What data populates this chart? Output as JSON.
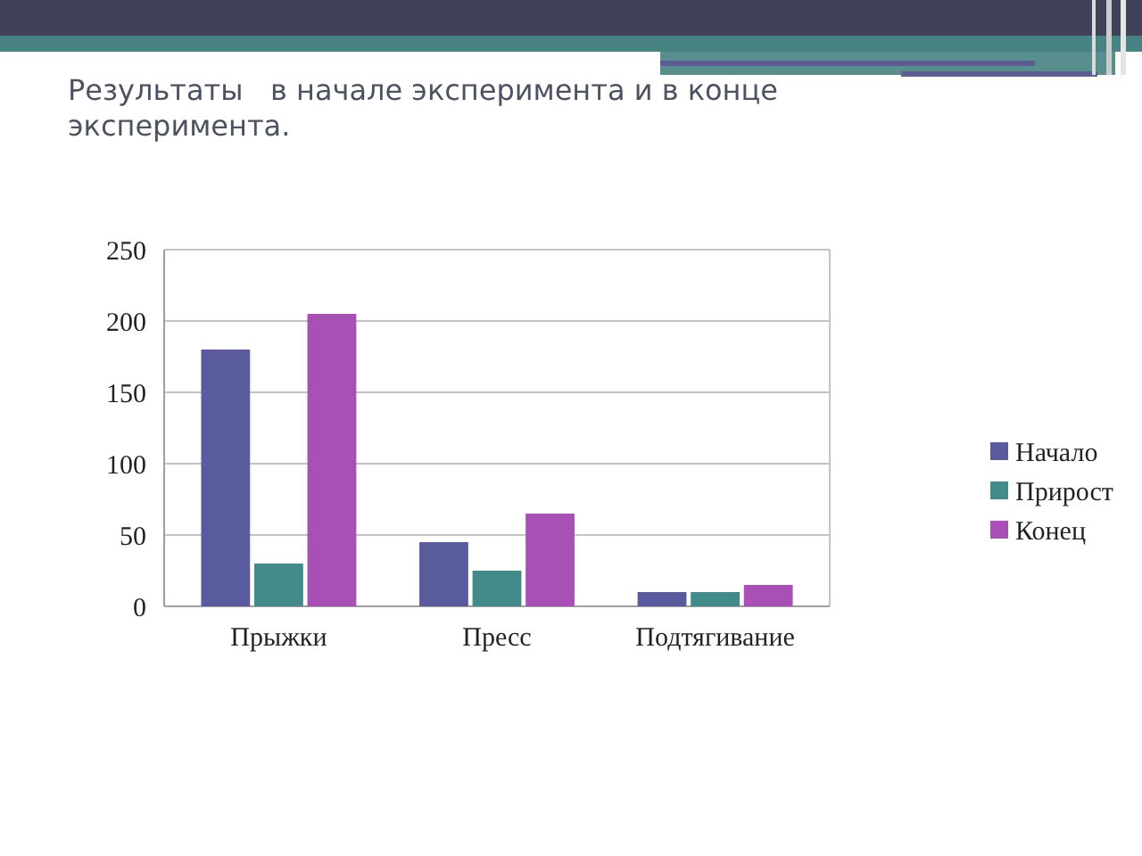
{
  "chart_data": {
    "type": "bar",
    "title": "Результаты   в начале эксперимента и в конце эксперимента.",
    "categories": [
      "Прыжки",
      "Пресс",
      "Подтягивание"
    ],
    "series": [
      {
        "name": "Начало",
        "color": "#5a5a9e",
        "values": [
          180,
          45,
          10
        ]
      },
      {
        "name": "Прирост",
        "color": "#438a8a",
        "values": [
          30,
          25,
          10
        ]
      },
      {
        "name": "Конец",
        "color": "#a850b6",
        "values": [
          205,
          65,
          15
        ]
      }
    ],
    "ylim": [
      0,
      250
    ],
    "yticks": [
      0,
      50,
      100,
      150,
      200,
      250
    ],
    "grid": true,
    "legend": "right"
  }
}
